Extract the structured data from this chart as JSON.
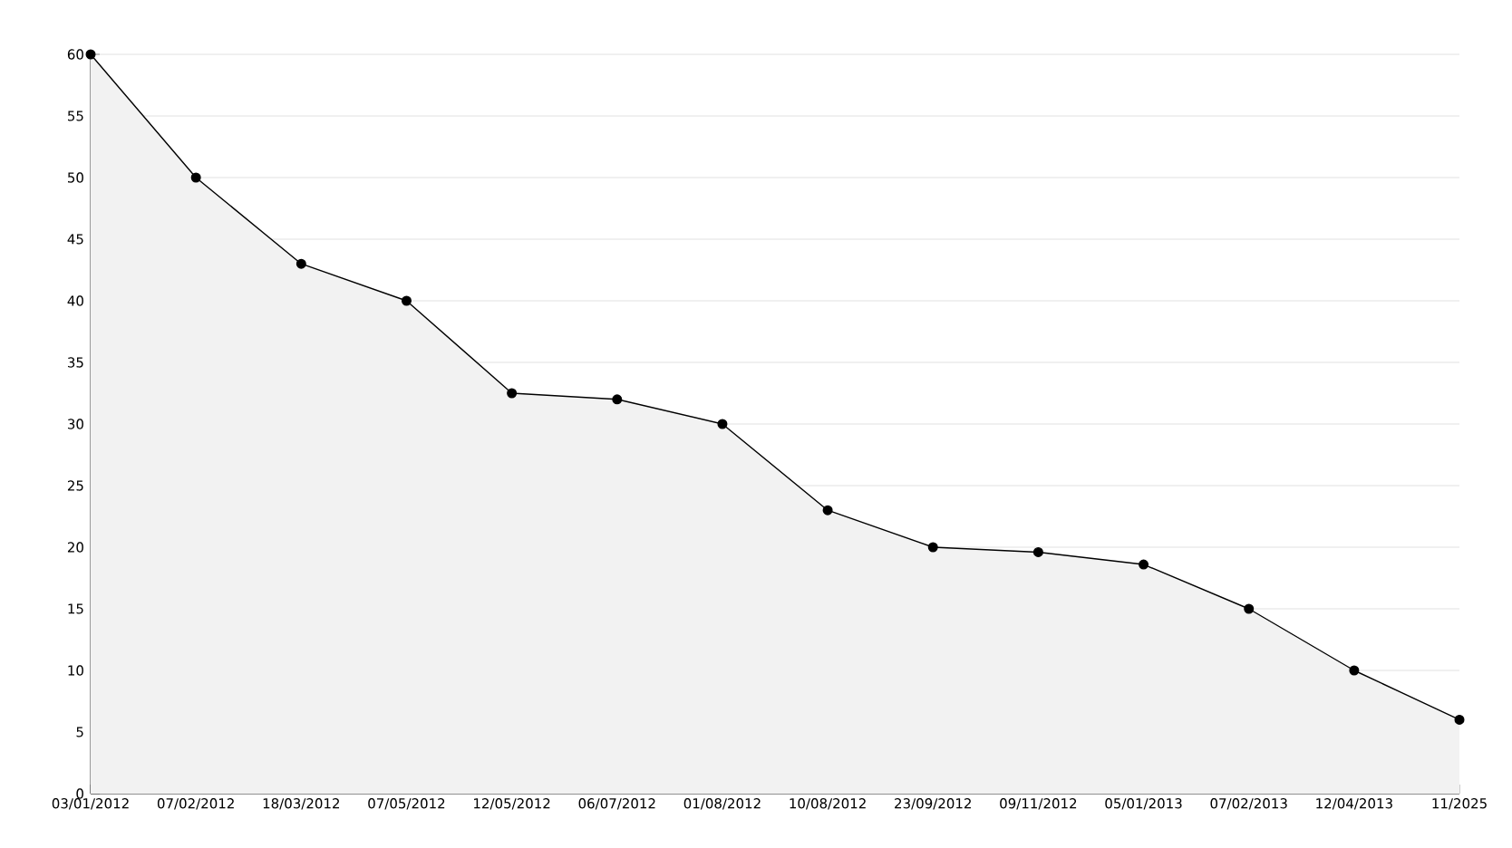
{
  "chart_data": {
    "type": "area",
    "categories": [
      "03/01/2012",
      "07/02/2012",
      "18/03/2012",
      "07/05/2012",
      "12/05/2012",
      "06/07/2012",
      "01/08/2012",
      "10/08/2012",
      "23/09/2012",
      "09/11/2012",
      "05/01/2013",
      "07/02/2013",
      "12/04/2013",
      "11/2025"
    ],
    "values": [
      60,
      50,
      43,
      40,
      32.5,
      32,
      30,
      23,
      20,
      19.6,
      18.6,
      15,
      10,
      6
    ],
    "color": "#f2f2f2",
    "ylim": [
      0,
      60
    ],
    "yticks": [
      0,
      5,
      10,
      15,
      20,
      25,
      30,
      35,
      40,
      45,
      50,
      55,
      60
    ],
    "grid": "y",
    "marker": "circle",
    "line_style": "solid"
  }
}
